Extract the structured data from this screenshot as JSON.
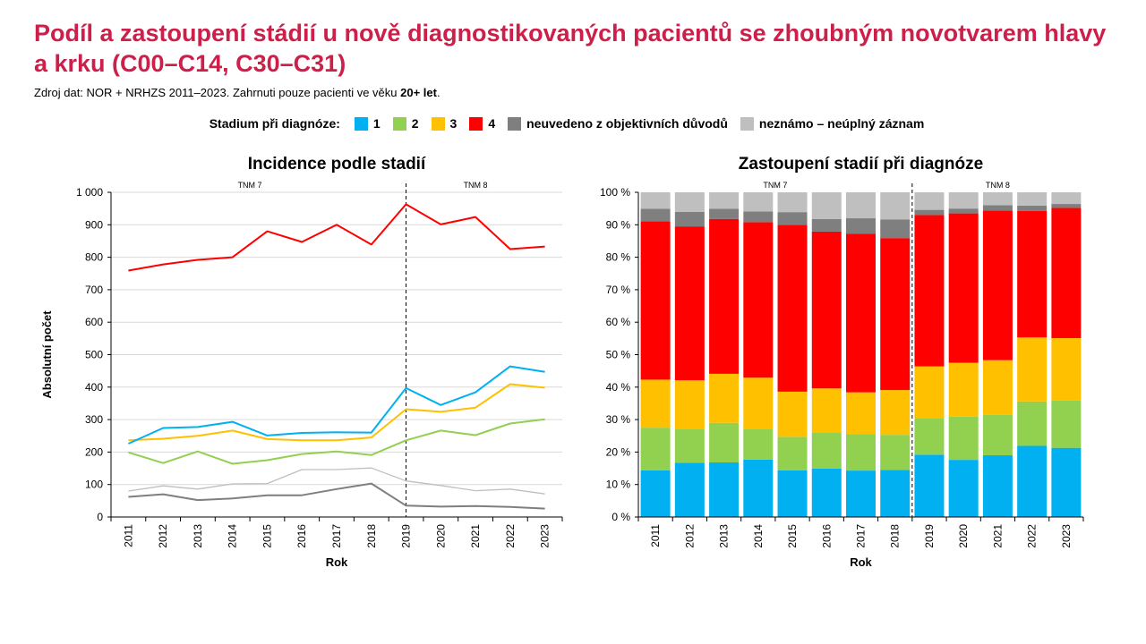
{
  "page": {
    "title": "Podíl a zastoupení stádií u nově diagnostikovaných pacientů se zhoubným novotvarem hlavy a krku (C00–C14, C30–C31)",
    "source_prefix": "Zdroj dat: NOR + NRHZS 2011–2023. Zahrnuti pouze pacienti ve věku ",
    "source_bold": "20+ let",
    "source_suffix": ".",
    "legend_title": "Stadium při diagnóze:",
    "legend": [
      {
        "label": "1",
        "color": "#00b0f0"
      },
      {
        "label": "2",
        "color": "#92d050"
      },
      {
        "label": "3",
        "color": "#ffc000"
      },
      {
        "label": "4",
        "color": "#ff0000"
      },
      {
        "label": "neuvedeno z objektivních důvodů",
        "color": "#7f7f7f"
      },
      {
        "label": "neznámo – neúplný záznam",
        "color": "#bfbfbf"
      }
    ]
  },
  "chart_data": [
    {
      "type": "line",
      "title": "Incidence podle stadií",
      "xlabel": "Rok",
      "ylabel": "Absolutní počet",
      "ylim": [
        0,
        1000
      ],
      "yticks": [
        0,
        100,
        200,
        300,
        400,
        500,
        600,
        700,
        800,
        900,
        1000
      ],
      "ytick_labels": [
        "0",
        "100",
        "200",
        "300",
        "400",
        "500",
        "600",
        "700",
        "800",
        "900",
        "1 000"
      ],
      "categories": [
        "2011",
        "2012",
        "2013",
        "2014",
        "2015",
        "2016",
        "2017",
        "2018",
        "2019",
        "2020",
        "2021",
        "2022",
        "2023"
      ],
      "grid": true,
      "annotations": [
        "TNM 7",
        "TNM 8"
      ],
      "divider_after": "2018",
      "series": [
        {
          "name": "1",
          "color": "#00b0f0",
          "width": 2,
          "values": [
            226,
            274,
            277,
            293,
            251,
            259,
            261,
            260,
            397,
            345,
            384,
            464,
            447
          ]
        },
        {
          "name": "2",
          "color": "#92d050",
          "width": 2,
          "values": [
            199,
            166,
            202,
            164,
            175,
            194,
            202,
            191,
            236,
            266,
            252,
            288,
            301
          ]
        },
        {
          "name": "3",
          "color": "#ffc000",
          "width": 2,
          "values": [
            236,
            241,
            250,
            266,
            240,
            236,
            236,
            245,
            332,
            324,
            337,
            409,
            398
          ]
        },
        {
          "name": "4",
          "color": "#ff0000",
          "width": 2,
          "values": [
            759,
            778,
            792,
            800,
            880,
            847,
            900,
            839,
            963,
            901,
            924,
            825,
            833
          ]
        },
        {
          "name": "neuvedeno z objektivních důvodů",
          "color": "#7f7f7f",
          "width": 2,
          "values": [
            62,
            70,
            52,
            57,
            67,
            67,
            86,
            103,
            35,
            32,
            34,
            31,
            26
          ]
        },
        {
          "name": "neznámo – neúplný záznam",
          "color": "#bfbfbf",
          "width": 1.3,
          "values": [
            80,
            96,
            86,
            102,
            103,
            146,
            146,
            151,
            111,
            97,
            81,
            86,
            71
          ]
        }
      ]
    },
    {
      "type": "bar",
      "stacked": true,
      "title": "Zastoupení stadií při diagnóze",
      "xlabel": "Rok",
      "ylim": [
        0,
        100
      ],
      "yticks": [
        0,
        10,
        20,
        30,
        40,
        50,
        60,
        70,
        80,
        90,
        100
      ],
      "ytick_labels": [
        "0 %",
        "10 %",
        "20 %",
        "30 %",
        "40 %",
        "50 %",
        "60 %",
        "70 %",
        "80 %",
        "90 %",
        "100 %"
      ],
      "categories": [
        "2011",
        "2012",
        "2013",
        "2014",
        "2015",
        "2016",
        "2017",
        "2018",
        "2019",
        "2020",
        "2021",
        "2022",
        "2023"
      ],
      "annotations": [
        "TNM 7",
        "TNM 8"
      ],
      "divider_after": "2018",
      "series": [
        {
          "name": "1",
          "color": "#00b0f0",
          "values": [
            14.4,
            16.7,
            16.8,
            17.7,
            14.4,
            14.9,
            14.3,
            14.5,
            19.2,
            17.6,
            19.0,
            21.9,
            21.3
          ]
        },
        {
          "name": "2",
          "color": "#92d050",
          "values": [
            13.1,
            10.5,
            12.2,
            9.5,
            10.3,
            11.2,
            11.2,
            10.8,
            11.3,
            13.3,
            12.5,
            13.7,
            14.6
          ]
        },
        {
          "name": "3",
          "color": "#ffc000",
          "values": [
            14.8,
            14.9,
            15.1,
            15.7,
            13.9,
            13.5,
            12.9,
            13.8,
            15.9,
            16.6,
            16.8,
            19.7,
            19.2
          ]
        },
        {
          "name": "4",
          "color": "#ff0000",
          "values": [
            48.8,
            47.4,
            47.7,
            47.9,
            51.4,
            48.3,
            48.8,
            46.8,
            46.6,
            46.0,
            46.1,
            39.0,
            40.1
          ]
        },
        {
          "name": "neuvedeno z objektivních důvodů",
          "color": "#7f7f7f",
          "values": [
            3.8,
            4.5,
            3.1,
            3.3,
            3.9,
            3.9,
            4.8,
            5.7,
            1.6,
            1.5,
            1.6,
            1.6,
            1.2
          ]
        },
        {
          "name": "neznámo – neúplný záznam",
          "color": "#bfbfbf",
          "values": [
            5.1,
            6.0,
            5.1,
            5.9,
            6.1,
            8.2,
            8.0,
            8.4,
            5.4,
            5.0,
            4.0,
            4.1,
            3.6
          ]
        }
      ]
    }
  ]
}
